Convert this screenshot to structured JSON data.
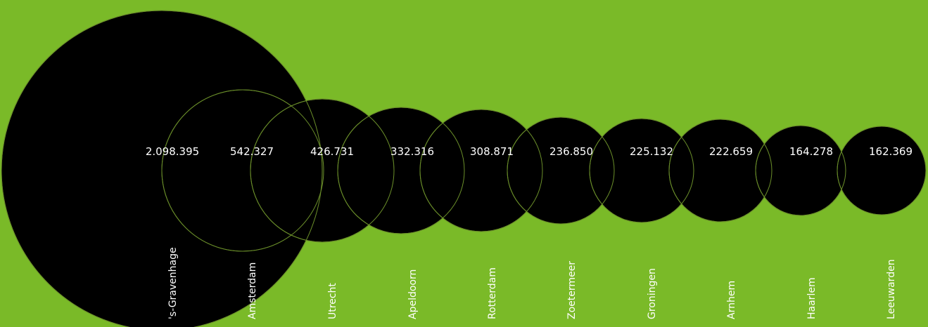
{
  "colors": {
    "background": "#7aba28",
    "bubble": "#000000",
    "bubble_stroke": "#6b8f2a",
    "text": "#ffffff"
  },
  "chart_data": {
    "type": "bubble",
    "title": "",
    "series": [
      {
        "values": [
          2098395,
          542327,
          426731,
          332316,
          308871,
          236850,
          225132,
          222659,
          164278,
          162369
        ],
        "value_labels": [
          "2.098.395",
          "542.327",
          "426.731",
          "332.316",
          "308.871",
          "236.850",
          "225.132",
          "222.659",
          "164.278",
          "162.369"
        ]
      }
    ],
    "categories": [
      "'s-Gravenhage",
      "Amsterdam",
      "Utrecht",
      "Apeldoorn",
      "Rotterdam",
      "Zoetermeer",
      "Groningen",
      "Arnhem",
      "Haarlem",
      "Leeuwarden"
    ],
    "legend": "none",
    "grid": false
  }
}
